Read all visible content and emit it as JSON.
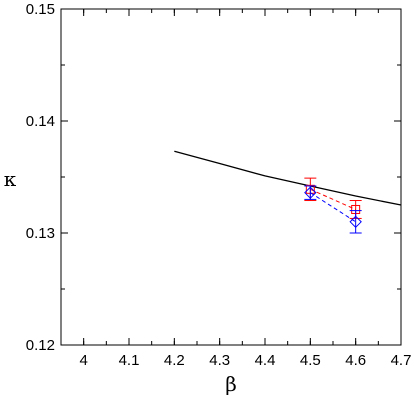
{
  "chart_data": {
    "type": "line",
    "title": "",
    "xlabel": "β",
    "ylabel": "κ",
    "xlim": [
      3.95,
      4.7
    ],
    "ylim": [
      0.12,
      0.15
    ],
    "xticks": [
      4,
      4.1,
      4.2,
      4.3,
      4.4,
      4.5,
      4.6,
      4.7
    ],
    "xtick_labels": [
      "4",
      "4.1",
      "4.2",
      "4.3",
      "4.4",
      "4.5",
      "4.6",
      "4.7"
    ],
    "yticks": [
      0.12,
      0.13,
      0.14,
      0.15
    ],
    "ytick_labels": [
      "0.12",
      "0.13",
      "0.14",
      "0.15"
    ],
    "grid": false,
    "legend": "none",
    "series": [
      {
        "style": "solid-line",
        "color": "#000000",
        "x": [
          4.2,
          4.3,
          4.4,
          4.5,
          4.6,
          4.7
        ],
        "y": [
          0.1373,
          0.1362,
          0.1351,
          0.1342,
          0.1333,
          0.1325
        ]
      },
      {
        "style": "dashed-line-square-markers",
        "color": "#ff0000",
        "x": [
          4.5,
          4.6
        ],
        "y": [
          0.1339,
          0.1321
        ],
        "yerr": [
          0.001,
          0.0008
        ]
      },
      {
        "style": "dashed-line-diamond-markers",
        "color": "#0000ff",
        "x": [
          4.5,
          4.6
        ],
        "y": [
          0.1336,
          0.131
        ],
        "yerr": [
          0.0006,
          0.001
        ]
      }
    ]
  }
}
